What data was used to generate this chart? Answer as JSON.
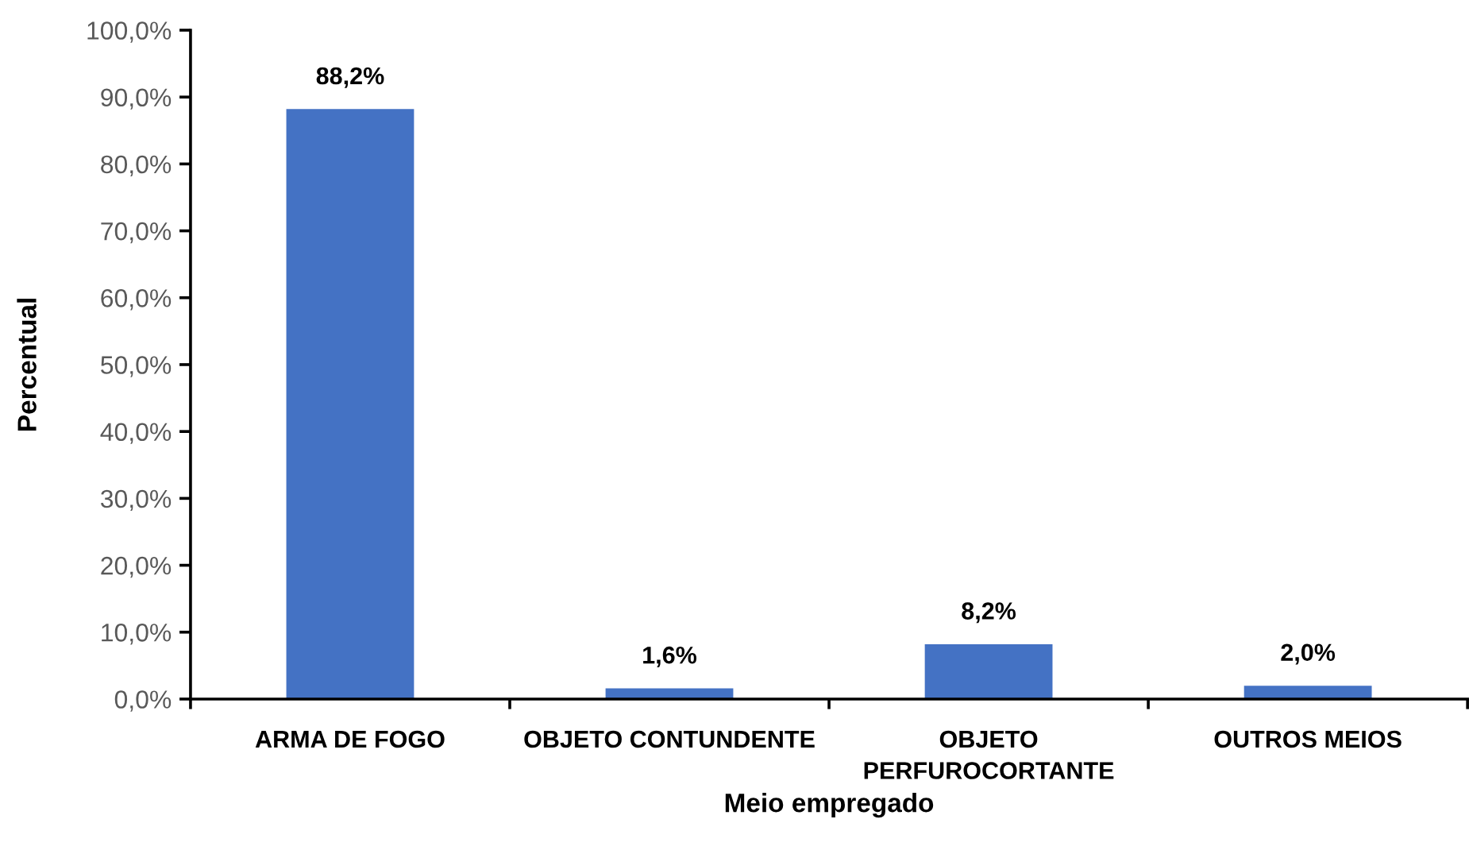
{
  "chart_data": {
    "type": "bar",
    "xlabel": "Meio empregado",
    "ylabel": "Percentual",
    "categories": [
      "ARMA DE FOGO",
      "OBJETO CONTUNDENTE",
      "OBJETO\nPERFUROCORTANTE",
      "OUTROS MEIOS"
    ],
    "values": [
      88.2,
      1.6,
      8.2,
      2.0
    ],
    "color": "#4472c4",
    "value_labels": [
      "88,2%",
      "1,6%",
      "8,2%",
      "2,0%"
    ],
    "ylim": [
      0,
      100
    ],
    "yticks": [
      {
        "value": 0,
        "label": "0,0%"
      },
      {
        "value": 10,
        "label": "10,0%"
      },
      {
        "value": 20,
        "label": "20,0%"
      },
      {
        "value": 30,
        "label": "30,0%"
      },
      {
        "value": 40,
        "label": "40,0%"
      },
      {
        "value": 50,
        "label": "50,0%"
      },
      {
        "value": 60,
        "label": "60,0%"
      },
      {
        "value": 70,
        "label": "70,0%"
      },
      {
        "value": 80,
        "label": "80,0%"
      },
      {
        "value": 90,
        "label": "90,0%"
      },
      {
        "value": 100,
        "label": "100,0%"
      }
    ],
    "grid": false,
    "legend": false
  }
}
